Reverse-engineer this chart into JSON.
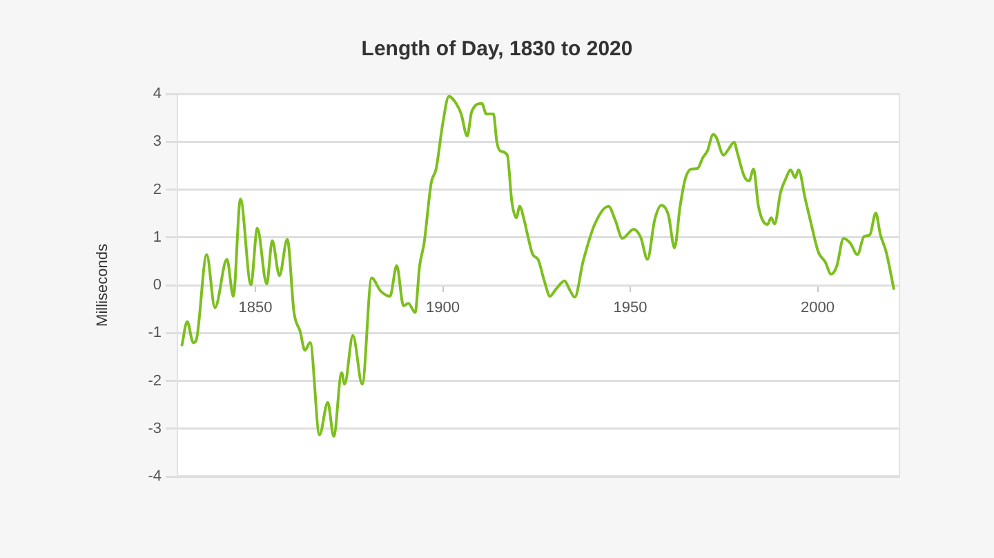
{
  "chart_data": {
    "type": "line",
    "title": "Length of Day, 1830 to 2020",
    "ylabel": "Milliseconds",
    "x": [
      1830.4,
      1831.8,
      1833.4,
      1834.2,
      1837.0,
      1839.2,
      1842.4,
      1844.1,
      1846.0,
      1848.8,
      1850.5,
      1853.0,
      1854.5,
      1856.4,
      1858.5,
      1860.3,
      1861.9,
      1863.2,
      1864.6,
      1867.1,
      1869.3,
      1870.9,
      1873.0,
      1873.8,
      1876.0,
      1878.5,
      1881.0,
      1883.4,
      1885.9,
      1887.7,
      1889.5,
      1890.8,
      1892.6,
      1893.8,
      1895.0,
      1896.9,
      1898.2,
      1900.0,
      1901.6,
      1903.7,
      1904.9,
      1906.5,
      1907.7,
      1910.4,
      1911.6,
      1913.5,
      1914.4,
      1915.3,
      1917.2,
      1918.4,
      1919.6,
      1920.5,
      1921.7,
      1922.7,
      1924.0,
      1925.4,
      1927.0,
      1928.6,
      1930.1,
      1932.5,
      1933.8,
      1935.2,
      1937.4,
      1940.5,
      1944.2,
      1946.0,
      1947.9,
      1950.9,
      1952.8,
      1954.6,
      1956.5,
      1958.3,
      1960.2,
      1961.8,
      1963.3,
      1964.7,
      1966.3,
      1967.9,
      1969.4,
      1970.6,
      1972.1,
      1972.9,
      1974.9,
      1976.1,
      1977.7,
      1978.6,
      1980.4,
      1981.7,
      1982.9,
      1984.2,
      1986.6,
      1987.6,
      1988.5,
      1990.1,
      1991.5,
      1992.8,
      1994.0,
      1994.9,
      1996.7,
      1998.3,
      2000.2,
      2002.0,
      2003.6,
      2005.1,
      2006.9,
      2008.7,
      2010.6,
      2012.4,
      2013.9,
      2015.5,
      2016.7,
      2018.3,
      2020.3
    ],
    "series": [
      {
        "color": "#7dbf1e",
        "values": [
          -1.25,
          -0.76,
          -1.2,
          -1.15,
          0.64,
          -0.47,
          0.54,
          -0.23,
          1.8,
          0.01,
          1.19,
          0.03,
          0.93,
          0.2,
          0.96,
          -0.57,
          -0.96,
          -1.36,
          -1.2,
          -3.13,
          -2.45,
          -3.16,
          -1.83,
          -2.07,
          -1.05,
          -2.07,
          0.15,
          -0.12,
          -0.23,
          0.41,
          -0.43,
          -0.38,
          -0.57,
          0.4,
          0.88,
          2.14,
          2.43,
          3.39,
          3.95,
          3.78,
          3.58,
          3.12,
          3.63,
          3.8,
          3.58,
          3.58,
          3.0,
          2.81,
          2.72,
          1.75,
          1.41,
          1.65,
          1.36,
          1.02,
          0.64,
          0.54,
          0.11,
          -0.23,
          -0.09,
          0.09,
          -0.09,
          -0.25,
          0.49,
          1.27,
          1.65,
          1.36,
          0.98,
          1.17,
          1.0,
          0.54,
          1.36,
          1.67,
          1.46,
          0.78,
          1.65,
          2.23,
          2.43,
          2.44,
          2.67,
          2.81,
          3.15,
          3.1,
          2.72,
          2.83,
          2.99,
          2.76,
          2.28,
          2.18,
          2.43,
          1.65,
          1.27,
          1.41,
          1.28,
          1.94,
          2.23,
          2.41,
          2.25,
          2.41,
          1.8,
          1.27,
          0.69,
          0.49,
          0.23,
          0.4,
          0.98,
          0.88,
          0.64,
          1.02,
          1.05,
          1.51,
          1.07,
          0.69,
          -0.07
        ]
      }
    ],
    "xlim": [
      1829,
      2022
    ],
    "xticks": [
      1850,
      1900,
      1950,
      2000
    ],
    "ylim": [
      -4,
      4
    ],
    "yticks": [
      -4,
      -3,
      -2,
      -1,
      0,
      1,
      2,
      3,
      4
    ],
    "grid": "y",
    "legend": false,
    "marker": "none",
    "line_style": "solid"
  }
}
